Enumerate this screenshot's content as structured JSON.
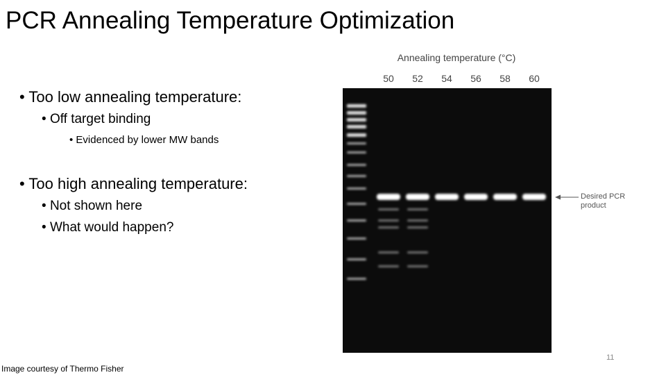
{
  "title": "PCR Annealing Temperature Optimization",
  "bullets": [
    {
      "text": "Too low annealing temperature:",
      "children": [
        {
          "text": "Off target binding",
          "children": [
            {
              "text": "Evidenced by lower MW bands"
            }
          ]
        }
      ]
    },
    {
      "text": "Too high annealing temperature:",
      "children": [
        {
          "text": "Not shown here"
        },
        {
          "text": "What would happen?"
        }
      ]
    }
  ],
  "figure": {
    "axis_title": "Annealing temperature (°C)",
    "lanes": [
      50,
      52,
      54,
      56,
      58,
      60
    ],
    "annotation": "Desired PCR product"
  },
  "page_number": "11",
  "credit": "Image courtesy of Thermo Fisher"
}
